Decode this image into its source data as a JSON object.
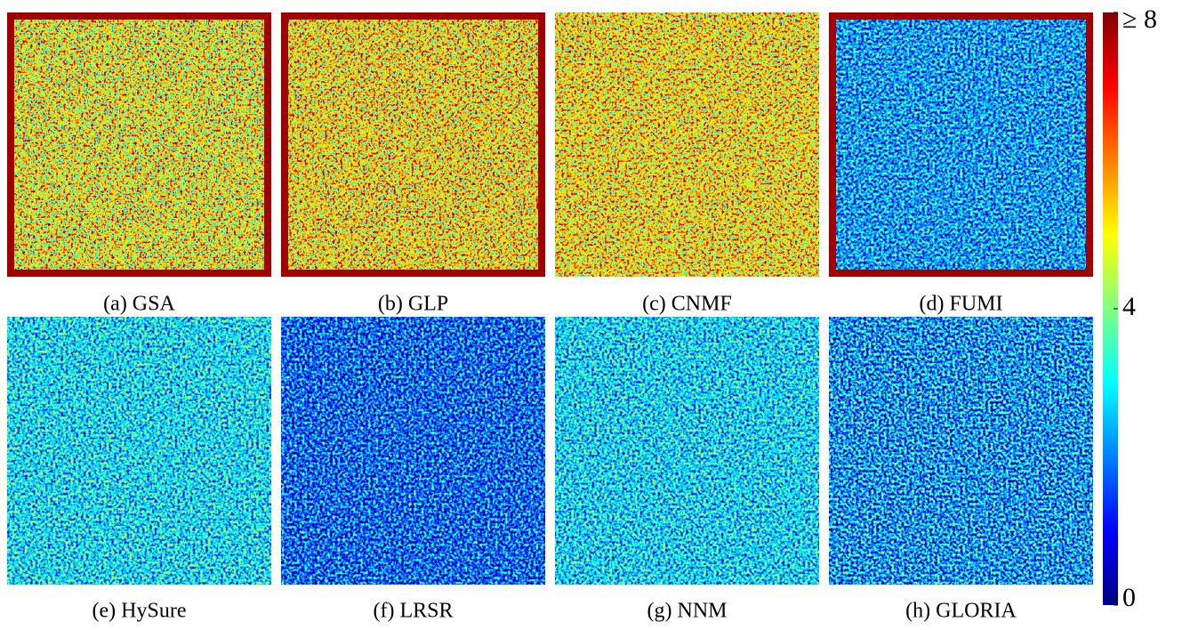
{
  "panels": [
    {
      "caption": "(a) GSA"
    },
    {
      "caption": "(b) GLP"
    },
    {
      "caption": "(c) CNMF"
    },
    {
      "caption": "(d) FUMI"
    },
    {
      "caption": "(e) HySure"
    },
    {
      "caption": "(f) LRSR"
    },
    {
      "caption": "(g) NNM"
    },
    {
      "caption": "(h) GLORIA"
    }
  ],
  "colorbar": {
    "lim": [
      0,
      8
    ],
    "ticks": [
      0,
      4,
      {
        "value": 8,
        "label": "≥ 8"
      }
    ]
  }
}
